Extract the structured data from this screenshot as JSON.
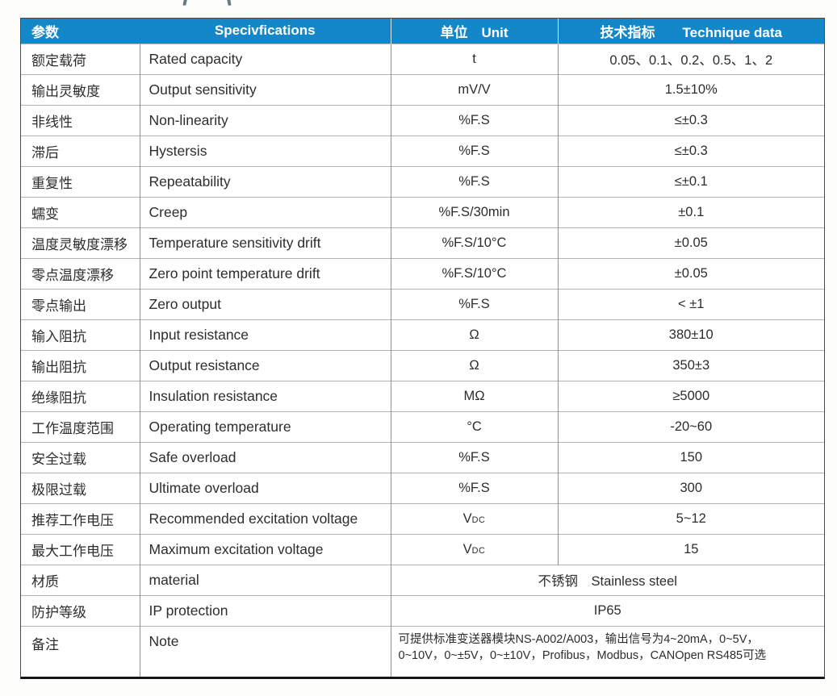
{
  "colors": {
    "header_bg": "#1487c9",
    "header_text": "#ffffff",
    "border_outer": "#4a4a4a",
    "border_h": "#b3b3b3",
    "border_v": "#8f8f8f",
    "text": "#2d2d2d"
  },
  "table": {
    "header": {
      "param": "参数",
      "spec": "Specivfications",
      "unit": "单位　Unit",
      "value": "技术指标　　Technique data"
    },
    "rows": [
      {
        "param": "额定载荷",
        "spec": "Rated capacity",
        "unit": "t",
        "value": "0.05、0.1、0.2、0.5、1、2"
      },
      {
        "param": "输出灵敏度",
        "spec": "Output sensitivity",
        "unit": "mV/V",
        "value": "1.5±10%"
      },
      {
        "param": "非线性",
        "spec": "Non-linearity",
        "unit": "%F.S",
        "value": "≤±0.3"
      },
      {
        "param": "滞后",
        "spec": "Hystersis",
        "unit": "%F.S",
        "value": "≤±0.3"
      },
      {
        "param": "重复性",
        "spec": "Repeatability",
        "unit": "%F.S",
        "value": "≤±0.1"
      },
      {
        "param": "蠕变",
        "spec": "Creep",
        "unit": "%F.S/30min",
        "value": "±0.1"
      },
      {
        "param": "温度灵敏度漂移",
        "spec": "Temperature sensitivity drift",
        "unit": "%F.S/10°C",
        "value": "±0.05"
      },
      {
        "param": "零点温度漂移",
        "spec": "Zero point temperature drift",
        "unit": "%F.S/10°C",
        "value": "±0.05"
      },
      {
        "param": "零点输出",
        "spec": "Zero output",
        "unit": "%F.S",
        "value": "< ±1"
      },
      {
        "param": "输入阻抗",
        "spec": "Input resistance",
        "unit": "Ω",
        "value": "380±10"
      },
      {
        "param": "输出阻抗",
        "spec": "Output resistance",
        "unit": "Ω",
        "value": "350±3"
      },
      {
        "param": "绝缘阻抗",
        "spec": "Insulation resistance",
        "unit": "MΩ",
        "value": "≥5000"
      },
      {
        "param": "工作温度范围",
        "spec": "Operating temperature",
        "unit": "°C",
        "value": "-20~60"
      },
      {
        "param": "安全过载",
        "spec": "Safe overload",
        "unit": "%F.S",
        "value": "150"
      },
      {
        "param": "极限过载",
        "spec": "Ultimate overload",
        "unit": "%F.S",
        "value": "300"
      },
      {
        "param": "推荐工作电压",
        "spec": "Recommended excitation voltage",
        "unit": "V",
        "unit_sub": "DC",
        "value": "5~12"
      },
      {
        "param": "最大工作电压",
        "spec": "Maximum excitation voltage",
        "unit": "V",
        "unit_sub": "DC",
        "value": "15"
      },
      {
        "param": "材质",
        "spec": "material",
        "merged": true,
        "value": "不锈钢　Stainless steel"
      },
      {
        "param": "防护等级",
        "spec": "IP protection",
        "merged": true,
        "value": "IP65"
      },
      {
        "param": "备注",
        "spec": "Note",
        "merged": true,
        "value_lines": [
          "可提供标准变送器模块NS-A002/A003，输出信号为4~20mA，0~5V，",
          "0~10V，0~±5V，0~±10V，Profibus，Modbus，CANOpen  RS485可选"
        ]
      }
    ]
  }
}
